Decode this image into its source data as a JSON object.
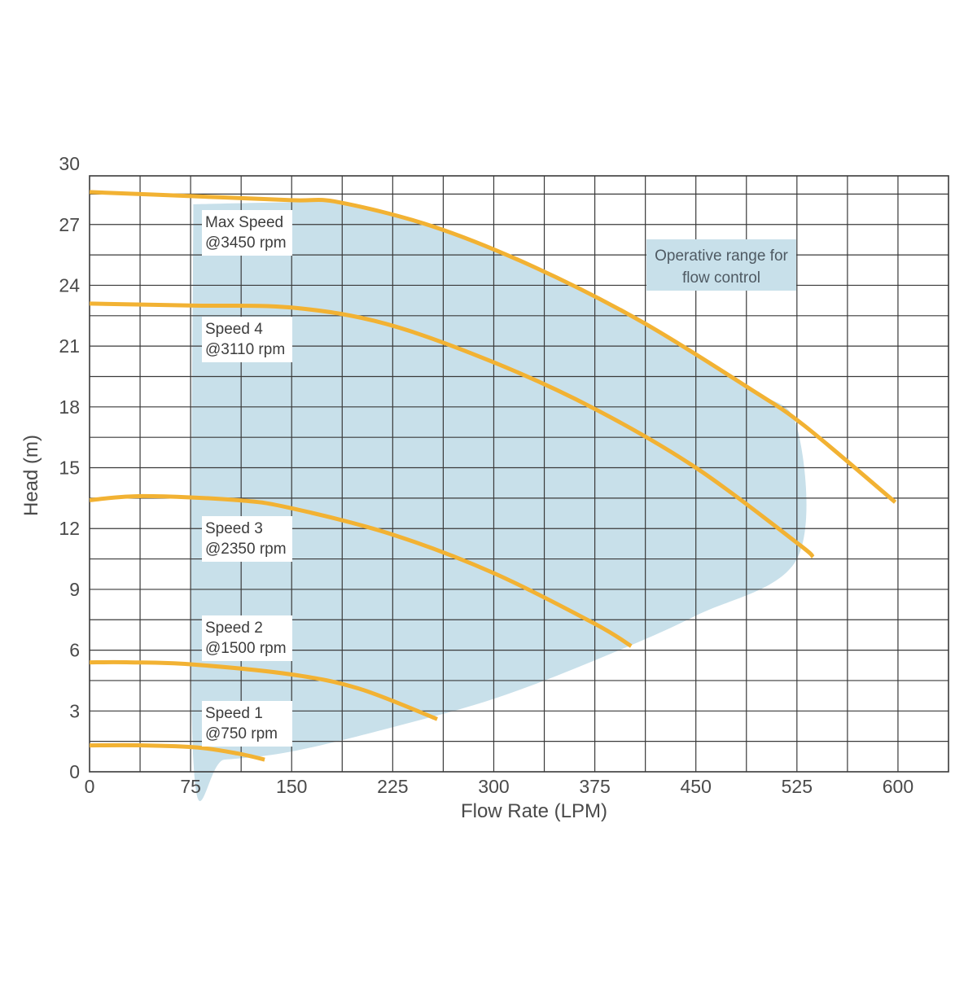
{
  "chart_data": {
    "type": "line",
    "xlabel": "Flow Rate (LPM)",
    "ylabel": "Head (m)",
    "xlim": [
      0,
      637.5
    ],
    "ylim": [
      0,
      29.4
    ],
    "x_ticks": [
      0,
      75,
      150,
      225,
      300,
      375,
      450,
      525,
      600
    ],
    "y_ticks": [
      0,
      3,
      6,
      9,
      12,
      15,
      18,
      21,
      24,
      27,
      30
    ],
    "grid": true,
    "colors": {
      "curve": "#f2b233",
      "region": "#c8e0ea",
      "label_bg": "#ffffff",
      "grid": "#3a3a3a"
    },
    "series": [
      {
        "name": "Max Speed @3450 rpm",
        "label_lines": [
          "Max Speed",
          "@3450 rpm"
        ],
        "x": [
          0,
          75,
          150,
          185,
          255,
          330,
          410,
          490,
          530,
          598
        ],
        "y": [
          28.6,
          28.4,
          28.2,
          28.1,
          26.9,
          24.9,
          22.2,
          18.9,
          17.1,
          13.3
        ]
      },
      {
        "name": "Speed 4 @3110 rpm",
        "label_lines": [
          "Speed 4",
          "@3110 rpm"
        ],
        "x": [
          0,
          75,
          150,
          220,
          300,
          375,
          450,
          525,
          537
        ],
        "y": [
          23.1,
          23.0,
          22.9,
          22.1,
          20.2,
          17.9,
          15.0,
          11.3,
          10.6
        ]
      },
      {
        "name": "Speed 3 @2350 rpm",
        "label_lines": [
          "Speed 3",
          "@2350 rpm"
        ],
        "x": [
          0,
          40,
          110,
          150,
          225,
          300,
          375,
          402
        ],
        "y": [
          13.4,
          13.6,
          13.4,
          13.0,
          11.7,
          9.8,
          7.3,
          6.2
        ]
      },
      {
        "name": "Speed 2 @1500 rpm",
        "label_lines": [
          "Speed 2",
          "@1500 rpm"
        ],
        "x": [
          0,
          30,
          75,
          150,
          200,
          258
        ],
        "y": [
          5.4,
          5.4,
          5.3,
          4.8,
          4.1,
          2.6
        ]
      },
      {
        "name": "Speed 1 @750 rpm",
        "label_lines": [
          "Speed 1",
          "@750 rpm"
        ],
        "x": [
          0,
          40,
          80,
          110,
          130
        ],
        "y": [
          1.3,
          1.3,
          1.2,
          0.9,
          0.6
        ]
      }
    ],
    "region": {
      "name": "Operative range for flow control",
      "label_lines": [
        "Operative range for",
        "flow control"
      ],
      "outline_x": [
        77,
        150,
        185,
        255,
        330,
        410,
        490,
        525,
        525,
        450,
        375,
        300,
        225,
        150,
        100,
        77,
        77
      ],
      "outline_y": [
        28.0,
        28.1,
        28.1,
        26.9,
        24.9,
        22.2,
        18.9,
        17.0,
        10.5,
        7.7,
        5.5,
        3.6,
        2.2,
        1.0,
        0.6,
        0.6,
        28.0
      ]
    }
  }
}
